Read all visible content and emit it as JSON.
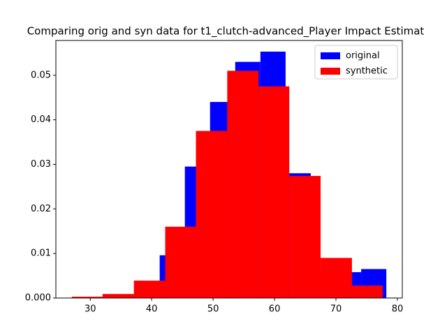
{
  "chart_data": {
    "type": "histogram",
    "title": "Comparing orig and syn data for t1_clutch-advanced_Player Impact Estimat",
    "series": [
      {
        "name": "original",
        "color": "#0000ff",
        "bins": [
          29.0,
          33.1,
          37.2,
          41.3,
          45.4,
          49.5,
          53.6,
          57.7,
          61.8,
          65.9,
          70.0,
          74.1,
          78.2
        ],
        "values": [
          0.0002,
          0.0005,
          0.003,
          0.0096,
          0.0295,
          0.044,
          0.053,
          0.0553,
          0.028,
          0.006,
          0.0058,
          0.0065
        ]
      },
      {
        "name": "synthetic",
        "color": "#ff0000",
        "bins": [
          27.0,
          32.0,
          37.1,
          42.2,
          47.2,
          52.3,
          57.4,
          62.4,
          67.5,
          72.6,
          77.6
        ],
        "values": [
          0.0003,
          0.0009,
          0.0039,
          0.016,
          0.0375,
          0.051,
          0.0475,
          0.0274,
          0.009,
          0.0028
        ]
      }
    ],
    "xlim": [
      24.4,
      80.8
    ],
    "ylim": [
      0,
      0.0578
    ],
    "xticks": [
      30,
      40,
      50,
      60,
      70,
      80
    ],
    "yticks": [
      {
        "value": 0,
        "label": "0.000"
      },
      {
        "value": 0.01,
        "label": "0.01"
      },
      {
        "value": 0.02,
        "label": "0.02"
      },
      {
        "value": 0.03,
        "label": "0.03"
      },
      {
        "value": 0.04,
        "label": "0.04"
      },
      {
        "value": 0.05,
        "label": "0.05"
      }
    ],
    "legend": "upper right"
  }
}
